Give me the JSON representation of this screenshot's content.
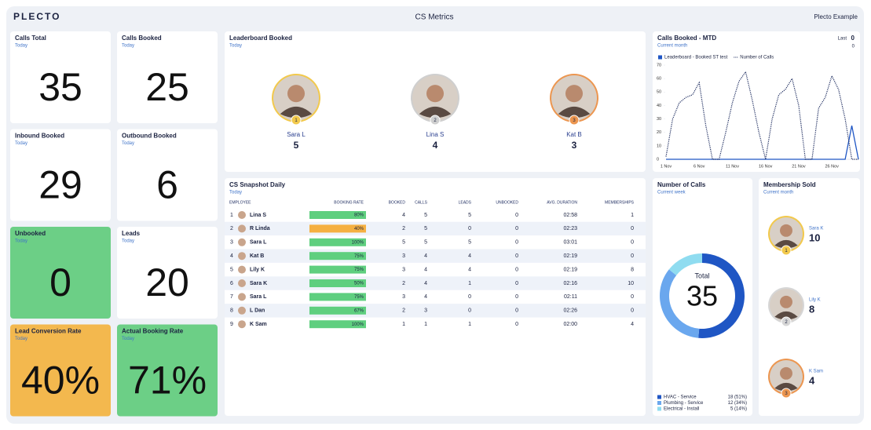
{
  "header": {
    "logo": "PLECTO",
    "title": "CS Metrics",
    "account": "Plecto Example"
  },
  "kpis": [
    {
      "title": "Calls Total",
      "period": "Today",
      "value": 35
    },
    {
      "title": "Calls Booked",
      "period": "Today",
      "value": 25
    },
    {
      "title": "Inbound Booked",
      "period": "Today",
      "value": 29
    },
    {
      "title": "Outbound Booked",
      "period": "Today",
      "value": 6
    },
    {
      "title": "Unbooked",
      "period": "Today",
      "value": 0,
      "color": "#6ccf86"
    },
    {
      "title": "Leads",
      "period": "Today",
      "value": 20
    },
    {
      "title": "Lead Conversion Rate",
      "period": "Today",
      "value": "40%",
      "color": "#f3b84e"
    },
    {
      "title": "Actual Booking Rate",
      "period": "Today",
      "value": "71%",
      "color": "#6ccf86"
    }
  ],
  "leaderboard": {
    "title": "Leaderboard Booked",
    "period": "Today",
    "entries": [
      {
        "rank": 1,
        "name": "Sara L",
        "value": 5,
        "color": "#f2c94c"
      },
      {
        "rank": 2,
        "name": "Lina S",
        "value": 4,
        "color": "#cfcfcf"
      },
      {
        "rank": 3,
        "name": "Kat B",
        "value": 3,
        "color": "#ec9650"
      }
    ]
  },
  "line_chart": {
    "type": "line",
    "title": "Calls Booked - MTD",
    "period": "Current month",
    "last_label": "Last",
    "last_values": [
      0,
      0
    ],
    "x": [
      "1 Nov",
      "2 Nov",
      "3 Nov",
      "4 Nov",
      "5 Nov",
      "6 Nov",
      "7 Nov",
      "8 Nov",
      "9 Nov",
      "10 Nov",
      "11 Nov",
      "12 Nov",
      "13 Nov",
      "14 Nov",
      "15 Nov",
      "16 Nov",
      "17 Nov",
      "18 Nov",
      "19 Nov",
      "20 Nov",
      "21 Nov",
      "22 Nov",
      "23 Nov",
      "24 Nov",
      "25 Nov",
      "26 Nov",
      "27 Nov",
      "28 Nov",
      "29 Nov",
      "30 Nov"
    ],
    "series": [
      {
        "name": "Leaderboard - Booked ST test",
        "color": "#1f56c4",
        "values": [
          0,
          0,
          0,
          0,
          0,
          0,
          0,
          0,
          0,
          0,
          0,
          0,
          0,
          0,
          0,
          0,
          0,
          0,
          0,
          0,
          0,
          0,
          0,
          0,
          0,
          0,
          0,
          0,
          25,
          0
        ]
      },
      {
        "name": "Number of Calls",
        "color": "#1b2a5e",
        "dashed": true,
        "values": [
          2,
          30,
          42,
          46,
          48,
          57,
          25,
          0,
          0,
          20,
          42,
          58,
          65,
          44,
          20,
          0,
          30,
          48,
          52,
          60,
          40,
          0,
          0,
          38,
          46,
          62,
          52,
          30,
          0,
          0
        ]
      }
    ],
    "ylim": [
      0,
      70
    ],
    "yticks": [
      0,
      10,
      20,
      30,
      40,
      50,
      60,
      70
    ],
    "grid": false
  },
  "table": {
    "title": "CS Snapshot Daily",
    "period": "Today",
    "columns": [
      "EMPLOYEE",
      "BOOKING RATE",
      "BOOKED",
      "CALLS",
      "LEADS",
      "UNBOOKED",
      "AVG. DURATION",
      "MEMBERSHIPS"
    ],
    "rows": [
      {
        "rank": 1,
        "employee": "Lina S",
        "booking_rate": "80%",
        "bar_color": "#5fcf7f",
        "booked": 4,
        "calls": 5,
        "leads": 5,
        "unbooked": 0,
        "avg_duration": "02:58",
        "memberships": 1
      },
      {
        "rank": 2,
        "employee": "R Linda",
        "booking_rate": "40%",
        "bar_color": "#f5b041",
        "booked": 2,
        "calls": 5,
        "leads": 0,
        "unbooked": 0,
        "avg_duration": "02:23",
        "memberships": 0
      },
      {
        "rank": 3,
        "employee": "Sara L",
        "booking_rate": "100%",
        "bar_color": "#5fcf7f",
        "booked": 5,
        "calls": 5,
        "leads": 5,
        "unbooked": 0,
        "avg_duration": "03:01",
        "memberships": 0
      },
      {
        "rank": 4,
        "employee": "Kat B",
        "booking_rate": "75%",
        "bar_color": "#5fcf7f",
        "booked": 3,
        "calls": 4,
        "leads": 4,
        "unbooked": 0,
        "avg_duration": "02:19",
        "memberships": 0
      },
      {
        "rank": 5,
        "employee": "Lily K",
        "booking_rate": "75%",
        "bar_color": "#5fcf7f",
        "booked": 3,
        "calls": 4,
        "leads": 4,
        "unbooked": 0,
        "avg_duration": "02:19",
        "memberships": 8
      },
      {
        "rank": 6,
        "employee": "Sara K",
        "booking_rate": "50%",
        "bar_color": "#5fcf7f",
        "booked": 2,
        "calls": 4,
        "leads": 1,
        "unbooked": 0,
        "avg_duration": "02:16",
        "memberships": 10
      },
      {
        "rank": 7,
        "employee": "Sara L",
        "booking_rate": "75%",
        "bar_color": "#5fcf7f",
        "booked": 3,
        "calls": 4,
        "leads": 0,
        "unbooked": 0,
        "avg_duration": "02:11",
        "memberships": 0
      },
      {
        "rank": 8,
        "employee": "L Dan",
        "booking_rate": "67%",
        "bar_color": "#5fcf7f",
        "booked": 2,
        "calls": 3,
        "leads": 0,
        "unbooked": 0,
        "avg_duration": "02:26",
        "memberships": 0
      },
      {
        "rank": 9,
        "employee": "K Sam",
        "booking_rate": "100%",
        "bar_color": "#5fcf7f",
        "booked": 1,
        "calls": 1,
        "leads": 1,
        "unbooked": 0,
        "avg_duration": "02:00",
        "memberships": 4
      }
    ]
  },
  "donut": {
    "type": "donut",
    "title": "Number of Calls",
    "period": "Current week",
    "center_label": "Total",
    "total": 35,
    "categories": [
      "HVAC - Service",
      "Plumbing - Service",
      "Electrical - Install"
    ],
    "values": [
      18,
      12,
      5
    ],
    "value_labels": [
      "18 (51%)",
      "12 (34%)",
      "5 (14%)"
    ],
    "colors": [
      "#1f56c4",
      "#6aa7ee",
      "#8fdcf0"
    ]
  },
  "membership": {
    "title": "Membership Sold",
    "period": "Current month",
    "entries": [
      {
        "rank": 1,
        "name": "Sara K",
        "value": 10,
        "color": "#f2c94c"
      },
      {
        "rank": 2,
        "name": "Lily K",
        "value": 8,
        "color": "#d6d6d6"
      },
      {
        "rank": 3,
        "name": "K Sam",
        "value": 4,
        "color": "#ec9650"
      }
    ]
  }
}
